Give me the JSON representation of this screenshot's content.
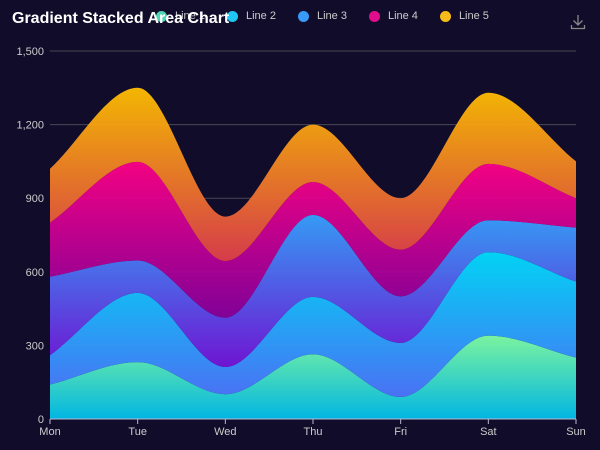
{
  "chart_data": {
    "type": "area",
    "stacked": true,
    "title": "Gradient Stacked Area Chart",
    "categories": [
      "Mon",
      "Tue",
      "Wed",
      "Thu",
      "Fri",
      "Sat",
      "Sun"
    ],
    "ylim": [
      0,
      1500
    ],
    "yticks": [
      "0",
      "300",
      "600",
      "900",
      "1,200",
      "1,500"
    ],
    "ytick_values": [
      0,
      300,
      600,
      900,
      1200,
      1500
    ],
    "grid": true,
    "legend_position": "top",
    "series": [
      {
        "name": "Line 1",
        "values": [
          140,
          232,
          101,
          264,
          90,
          340,
          250
        ],
        "color_top": "#80ffa5",
        "color_bottom": "#01bfec"
      },
      {
        "name": "Line 2",
        "values": [
          120,
          282,
          111,
          234,
          220,
          340,
          310
        ],
        "color_top": "#00ddff",
        "color_bottom": "#4d77ff"
      },
      {
        "name": "Line 3",
        "values": [
          320,
          132,
          201,
          334,
          190,
          130,
          220
        ],
        "color_top": "#37a2ff",
        "color_bottom": "#7415db"
      },
      {
        "name": "Line 4",
        "values": [
          220,
          402,
          231,
          134,
          190,
          230,
          120
        ],
        "color_top": "#ff0087",
        "color_bottom": "#87009d"
      },
      {
        "name": "Line 5",
        "values": [
          220,
          302,
          181,
          234,
          210,
          290,
          150
        ],
        "color_top": "#ffbf00",
        "color_bottom": "#e03e4c"
      }
    ]
  }
}
